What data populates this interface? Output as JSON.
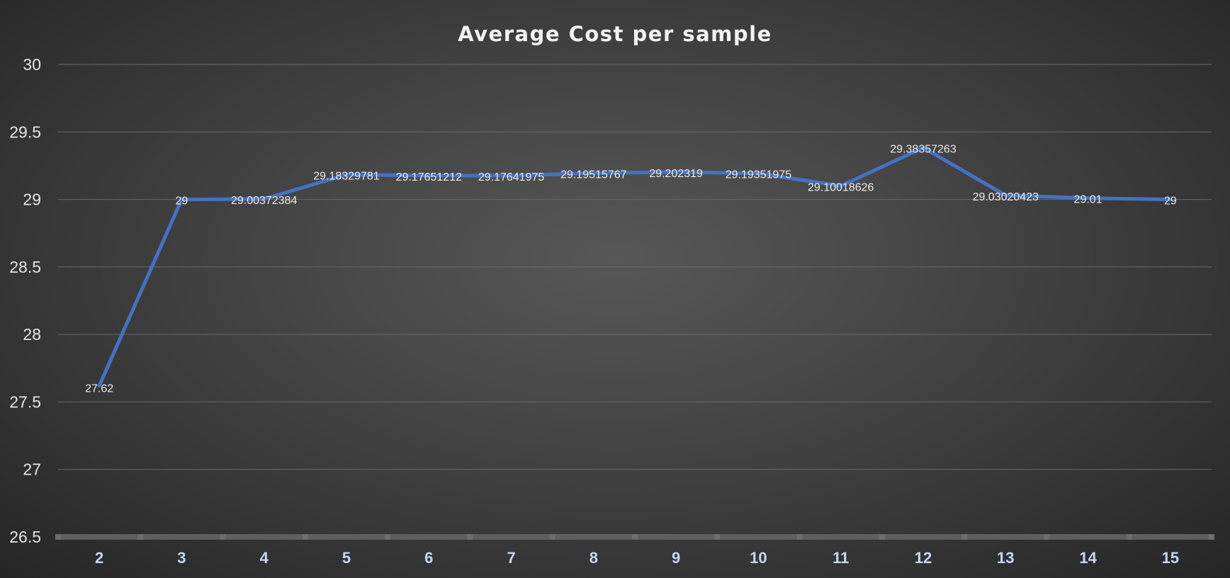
{
  "chart_data": {
    "type": "line",
    "title": "Average Cost per sample",
    "xlabel": "",
    "ylabel": "",
    "categories": [
      "2",
      "3",
      "4",
      "5",
      "6",
      "7",
      "8",
      "9",
      "10",
      "11",
      "12",
      "13",
      "14",
      "15"
    ],
    "series": [
      {
        "values": [
          27.62,
          29,
          29.00372384,
          29.18329781,
          29.17651212,
          29.17641975,
          29.19515767,
          29.202319,
          29.19351975,
          29.10018626,
          29.38357263,
          29.03020423,
          29.01,
          29
        ],
        "data_labels": [
          "27.62",
          "29",
          "29.00372384",
          "29.18329781",
          "29.17651212",
          "29.17641975",
          "29.19515767",
          "29.202319",
          "29.19351975",
          "29.10018626",
          "29.38357263",
          "29.03020423",
          "29.01",
          "29"
        ],
        "color": "#4472c4"
      }
    ],
    "y_ticks": [
      "26.5",
      "27",
      "27.5",
      "28",
      "28.5",
      "29",
      "29.5",
      "30"
    ],
    "ylim": [
      26.5,
      30
    ],
    "grid": true,
    "legend": "none"
  },
  "colors": {
    "line": "#4472c4",
    "gridline": "#6a6a6a",
    "axis": "#5e5e5e"
  }
}
